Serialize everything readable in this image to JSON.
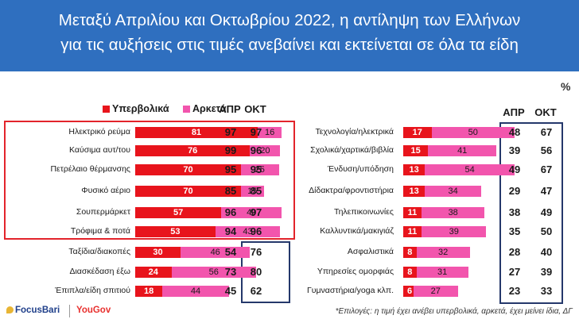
{
  "title": {
    "line1": "Μεταξύ Απριλίου και Οκτωβρίου 2022, η αντίληψη των Ελλήνων",
    "line2": "για τις αυξήσεις στις τιμές ανεβαίνει και εκτείνεται σε όλα τα είδη"
  },
  "unit": "%",
  "legend": {
    "series1": "Υπερβολικά",
    "series2": "Αρκετά"
  },
  "columns": {
    "apr": "ΑΠΡ",
    "oct": "ΟΚΤ"
  },
  "colors": {
    "header": "#2f6fbf",
    "series1": "#e8141c",
    "series2": "#f255ad",
    "box_red": "#e3242b",
    "box_navy": "#25386b"
  },
  "chart_data": [
    {
      "type": "bar",
      "stacked": true,
      "orientation": "horizontal",
      "categories": [
        "Ηλεκτρικό ρεύμα",
        "Καύσιμα αυτ/του",
        "Πετρέλαιο θέρμανσης",
        "Φυσικό αέριο",
        "Σουπερμάρκετ",
        "Τρόφιμα & ποτά",
        "Ταξίδια/διακοπές",
        "Διασκέδαση έξω",
        "Έπιπλα/είδη σπιτιού"
      ],
      "series": [
        {
          "name": "Υπερβολικά",
          "values": [
            81,
            76,
            70,
            70,
            57,
            53,
            30,
            24,
            18
          ]
        },
        {
          "name": "Αρκετά",
          "values": [
            16,
            20,
            25,
            15,
            40,
            43,
            46,
            56,
            44
          ]
        }
      ],
      "apr": [
        97,
        99,
        95,
        85,
        96,
        94,
        54,
        73,
        45
      ],
      "oct": [
        97,
        96,
        95,
        85,
        97,
        96,
        76,
        80,
        62
      ]
    },
    {
      "type": "bar",
      "stacked": true,
      "orientation": "horizontal",
      "categories": [
        "Τεχνολογία/ηλεκτρικά",
        "Σχολικά/χαρτικά/βιβλία",
        "Ένδυση/υπόδηση",
        "Δίδακτρα/φροντιστήρια",
        "Τηλεπικοινωνίες",
        "Καλλυντικά/μακιγιάζ",
        "Ασφαλιστικά",
        "Υπηρεσίες ομορφιάς",
        "Γυμναστήρια/yoga κλπ."
      ],
      "series": [
        {
          "name": "Υπερβολικά",
          "values": [
            17,
            15,
            13,
            13,
            11,
            11,
            8,
            8,
            6
          ]
        },
        {
          "name": "Αρκετά",
          "values": [
            50,
            41,
            54,
            34,
            38,
            39,
            32,
            31,
            27
          ]
        }
      ],
      "apr": [
        48,
        39,
        49,
        29,
        38,
        35,
        28,
        27,
        23
      ],
      "oct": [
        67,
        56,
        67,
        47,
        49,
        50,
        40,
        39,
        33
      ]
    }
  ],
  "footer": {
    "note": "*Επιλογές: η τιμή έχει ανέβει υπερβολικά, αρκετά, έχει μείνει ίδια, ΔΓ",
    "logo_focusbari": "FocusBari",
    "logo_yougov": "YouGov"
  }
}
